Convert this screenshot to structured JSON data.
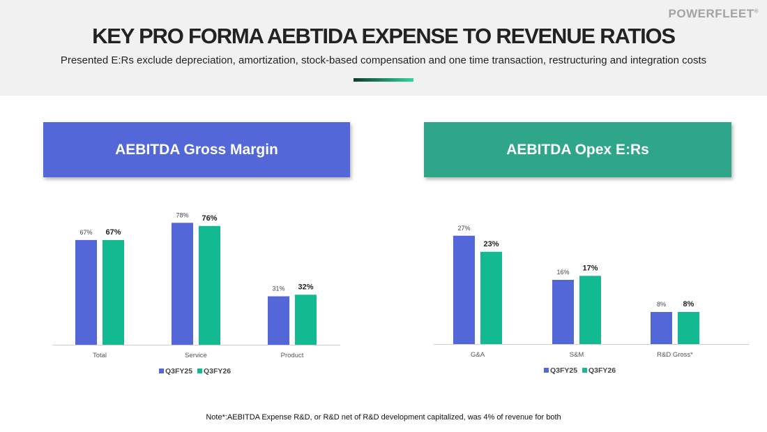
{
  "header": {
    "logo": "POWERFLEET",
    "title": "KEY PRO FORMA AEBTIDA EXPENSE TO REVENUE RATIOS",
    "subtitle": "Presented E:Rs exclude depreciation, amortization, stock-based compensation and one time transaction, restructuring and integration costs"
  },
  "colors": {
    "q3fy25": "#5467d8",
    "q3fy26": "#13b990"
  },
  "chart_data": [
    {
      "type": "bar",
      "title": "AEBITDA Gross Margin",
      "categories": [
        "Total",
        "Service",
        "Product"
      ],
      "series": [
        {
          "name": "Q3FY25",
          "values": [
            67,
            78,
            31
          ]
        },
        {
          "name": "Q3FY26",
          "values": [
            67,
            76,
            32
          ]
        }
      ],
      "labels": [
        [
          "67%",
          "78%",
          "31%"
        ],
        [
          "67%",
          "76%",
          "32%"
        ]
      ],
      "legend": "bottom",
      "ylim": [
        0,
        85
      ]
    },
    {
      "type": "bar",
      "title": "AEBITDA Opex E:Rs",
      "categories": [
        "G&A",
        "S&M",
        "R&D Gross*"
      ],
      "series": [
        {
          "name": "Q3FY25",
          "values": [
            27,
            16,
            8
          ]
        },
        {
          "name": "Q3FY26",
          "values": [
            23,
            17,
            8
          ]
        }
      ],
      "labels": [
        [
          "27%",
          "16%",
          "8%"
        ],
        [
          "23%",
          "17%",
          "8%"
        ]
      ],
      "legend": "bottom",
      "ylim": [
        0,
        30
      ]
    }
  ],
  "note": "Note*:AEBITDA Expense R&D, or  R&D net of R&D development capitalized, was 4% of revenue for both"
}
